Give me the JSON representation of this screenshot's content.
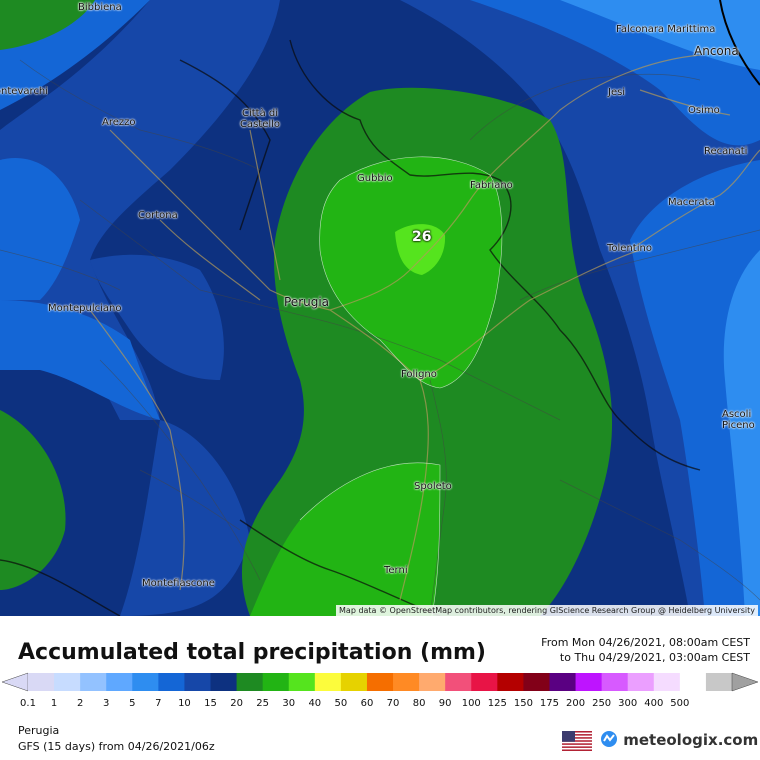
{
  "map": {
    "max_value": "26",
    "attribution": "Map data © OpenStreetMap contributors, rendering GIScience Research Group @ Heidelberg University",
    "cities": [
      {
        "name": "Bibbiena"
      },
      {
        "name": "Falconara Marittima"
      },
      {
        "name": "Ancona"
      },
      {
        "name": "Montevarchi"
      },
      {
        "name": "Arezzo"
      },
      {
        "name": "Città di Castello"
      },
      {
        "name": "Jesi"
      },
      {
        "name": "Osimo"
      },
      {
        "name": "Recanati"
      },
      {
        "name": "Gubbio"
      },
      {
        "name": "Fabriano"
      },
      {
        "name": "Macerata"
      },
      {
        "name": "Cortona"
      },
      {
        "name": "Tolentino"
      },
      {
        "name": "Perugia"
      },
      {
        "name": "Montepulciano"
      },
      {
        "name": "Foligno"
      },
      {
        "name": "Ascoli Piceno"
      },
      {
        "name": "Spoleto"
      },
      {
        "name": "Montefiascone"
      },
      {
        "name": "Terni"
      }
    ]
  },
  "legend": {
    "title": "Accumulated total precipitation (mm)",
    "period_from": "From Mon 04/26/2021, 08:00am CEST",
    "period_to": "to Thu 04/29/2021, 03:00am CEST",
    "levels": [
      "0.1",
      "1",
      "2",
      "3",
      "5",
      "7",
      "10",
      "15",
      "20",
      "25",
      "30",
      "40",
      "50",
      "60",
      "70",
      "80",
      "90",
      "100",
      "125",
      "150",
      "175",
      "200",
      "250",
      "300",
      "400",
      "500"
    ],
    "colors": [
      "#d9d9f5",
      "#c7dcff",
      "#93c2ff",
      "#5fa8ff",
      "#2e8df0",
      "#1466d6",
      "#1647a8",
      "#0d3180",
      "#1e8a22",
      "#22b414",
      "#55e41e",
      "#fcfc3c",
      "#e6d200",
      "#f56e00",
      "#ff8a24",
      "#ffaa6e",
      "#f2507a",
      "#e81446",
      "#b40000",
      "#820018",
      "#5a0082",
      "#be14ff",
      "#d75aff",
      "#eb9fff",
      "#f5dcff",
      "#ffffff",
      "#c8c8c8"
    ]
  },
  "location": "Perugia",
  "model": "GFS (15 days) from  04/26/2021/06z",
  "brand": "meteologix.com"
}
